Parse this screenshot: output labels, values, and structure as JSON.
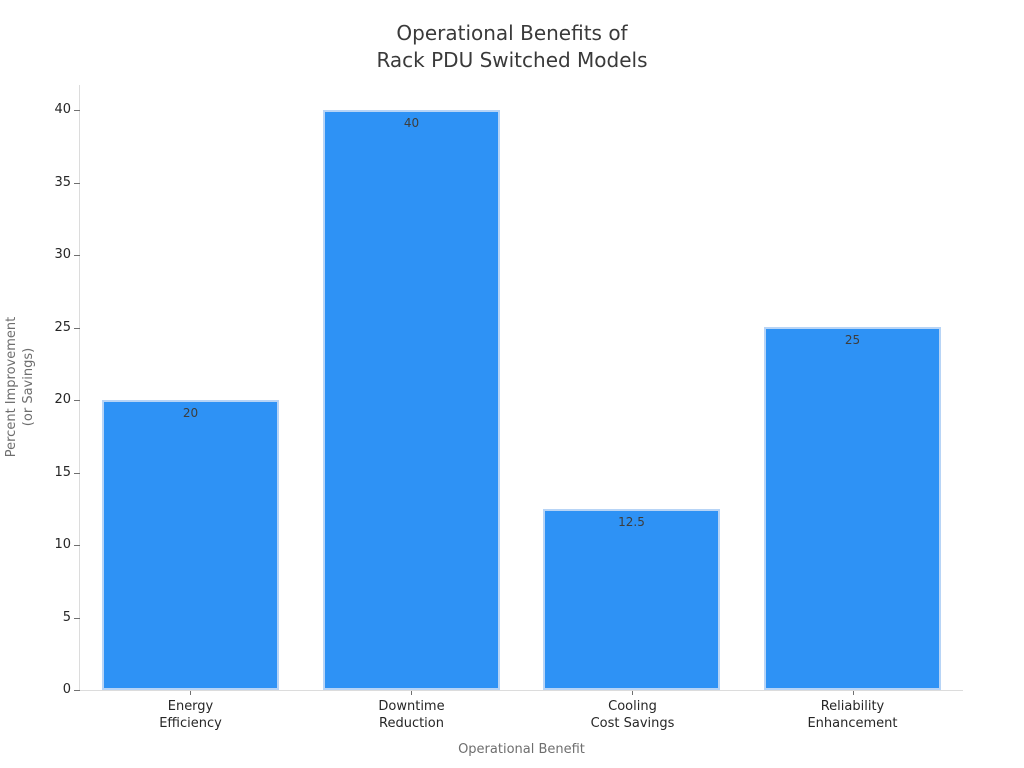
{
  "chart_data": {
    "type": "bar",
    "title": "Operational Benefits of\nRack PDU Switched Models",
    "xlabel": "Operational Benefit",
    "ylabel": "Percent Improvement\n(or Savings)",
    "categories": [
      "Energy\nEfficiency",
      "Downtime\nReduction",
      "Cooling\nCost Savings",
      "Reliability\nEnhancement"
    ],
    "values": [
      20,
      40,
      12.5,
      25
    ],
    "value_labels": [
      "20",
      "40",
      "12.5",
      "25"
    ],
    "yticks": [
      0,
      5,
      10,
      15,
      20,
      25,
      30,
      35,
      40
    ],
    "ylim": [
      0,
      41.7
    ],
    "bar_width_fraction": 0.8,
    "grid": false,
    "legend": null,
    "colors": {
      "background": "#FFFFFF",
      "bar_fill": "#2E92F5",
      "bar_edge": "#B7D4F6",
      "title": "#3A3A3A",
      "axis_label": "#6E6E6E",
      "tick_label": "#262626",
      "tick_mark": "#707070",
      "spine": "#DCDCDC",
      "value_label": "#3D3D3D"
    }
  }
}
